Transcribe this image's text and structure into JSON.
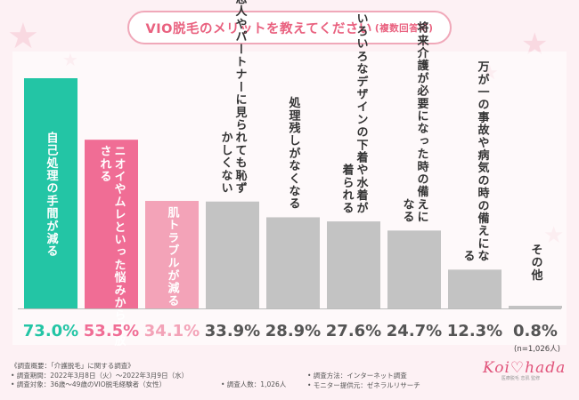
{
  "title": {
    "main": "VIO脱毛のメリットを教えてください",
    "sub": "(複数回答可)"
  },
  "chart_data": {
    "type": "bar",
    "categories": [
      "自己処理の手間が減る",
      "ニオイやムレといった悩みから開放される",
      "肌トラブルが減る",
      "恋人やパートナーに見られても恥ずかしくない",
      "処理残しがなくなる",
      "いろいろなデザインの下着や水着が着られる",
      "将来介護が必要になった時の備えになる",
      "万が一の事故や病気の時の備えになる",
      "その他"
    ],
    "values": [
      73.0,
      53.5,
      34.1,
      33.9,
      28.9,
      27.6,
      24.7,
      12.3,
      0.8
    ],
    "value_labels": [
      "73.0%",
      "53.5%",
      "34.1%",
      "33.9%",
      "28.9%",
      "27.6%",
      "24.7%",
      "12.3%",
      "0.8%"
    ],
    "colors": [
      "#23c5a5",
      "#f06d95",
      "#f3a3b8",
      "#c3c3c3",
      "#c3c3c3",
      "#c3c3c3",
      "#c3c3c3",
      "#c3c3c3",
      "#c3c3c3"
    ],
    "label_colors": [
      "#ffffff",
      "#ffffff",
      "#ffffff",
      "#333333",
      "#333333",
      "#333333",
      "#333333",
      "#333333",
      "#333333"
    ],
    "value_colors": [
      "#23c5a5",
      "#f06d95",
      "#f3a3b8",
      "#555555",
      "#555555",
      "#555555",
      "#555555",
      "#555555",
      "#555555"
    ],
    "ylim": [
      0,
      80
    ],
    "n_note": "(n=1,026人)"
  },
  "footnotes": {
    "l1": "《調査概要：「介護脱毛」に関する調査》",
    "l2": "• 調査期間：2022年3月8日（火）〜2022年3月9日（水）",
    "l3": "• 調査対象：36歳〜49歳のVIO脱毛経験者（女性）",
    "l4": "• 調査人数：1,026人",
    "l5": "• 調査方法：インターネット調査",
    "l6": "• モニター提供元：ゼネラルリサーチ"
  },
  "logo": {
    "text": "Koi♡hada",
    "tagline": "医療脱毛 恋肌 監修"
  }
}
